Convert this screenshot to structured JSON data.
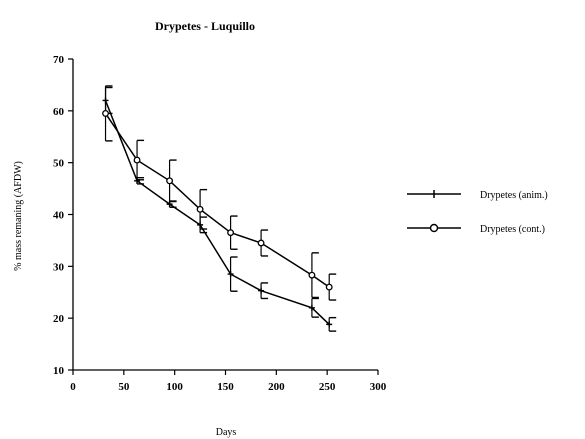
{
  "chart_data": {
    "type": "line",
    "title": "Drypetes  -  Luquillo",
    "xlabel": "Days",
    "ylabel": "% mass remaning (AFDW)",
    "xlim": [
      0,
      300
    ],
    "ylim": [
      10,
      70
    ],
    "xticks": [
      0,
      50,
      100,
      150,
      200,
      250,
      300
    ],
    "yticks": [
      10,
      20,
      30,
      40,
      50,
      60,
      70
    ],
    "grid": false,
    "legend_position": "right",
    "series": [
      {
        "name": "Drypetes (anim.)",
        "marker": "plus",
        "color": "#000000",
        "x": [
          32,
          63,
          95,
          125,
          155,
          185,
          235,
          252
        ],
        "y": [
          62,
          46.5,
          42,
          38,
          28.5,
          25.3,
          22,
          18.8
        ],
        "err": [
          2.5,
          0.6,
          0.6,
          1.5,
          3.3,
          1.5,
          1.8,
          1.3
        ]
      },
      {
        "name": "Drypetes (cont.)",
        "marker": "circle",
        "color": "#000000",
        "x": [
          32,
          63,
          95,
          125,
          155,
          185,
          235,
          252
        ],
        "y": [
          59.5,
          50.5,
          46.5,
          41,
          36.5,
          34.5,
          28.3,
          26
        ],
        "err": [
          5.3,
          3.8,
          4,
          3.8,
          3.2,
          2.5,
          4.3,
          2.5
        ]
      }
    ]
  }
}
